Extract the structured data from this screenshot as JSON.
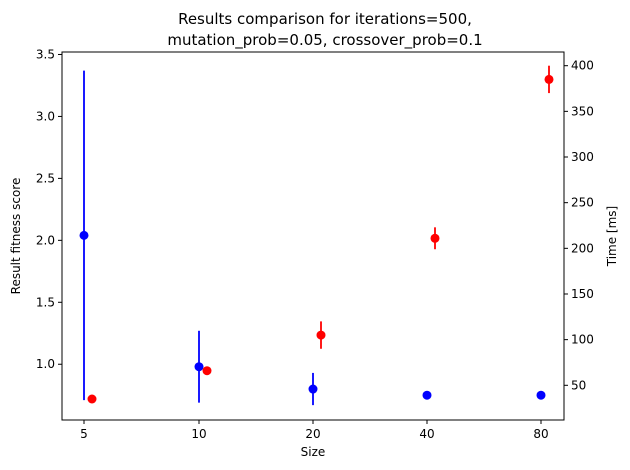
{
  "chart_data": {
    "type": "scatter",
    "title_lines": [
      "Results comparison for iterations=500,",
      "mutation_prob=0.05, crossover_prob=0.1"
    ],
    "xlabel": "Size",
    "ylabel_left": "Result fitness score",
    "ylabel_right": "Time [ms]",
    "categories": [
      "5",
      "10",
      "20",
      "40",
      "80"
    ],
    "y_left_lim": [
      0.55,
      3.52
    ],
    "y_left_ticks": [
      "1.0",
      "1.5",
      "2.0",
      "2.5",
      "3.0",
      "3.5"
    ],
    "y_right_lim": [
      12,
      415
    ],
    "y_right_ticks": [
      "50",
      "100",
      "150",
      "200",
      "250",
      "300",
      "350",
      "400"
    ],
    "grid": false,
    "series": [
      {
        "axis": "left",
        "color": "#0000ff",
        "values": [
          2.04,
          0.98,
          0.8,
          0.75,
          0.75
        ],
        "errors": [
          1.33,
          0.29,
          0.13,
          0.0,
          0.0
        ]
      },
      {
        "axis": "right",
        "color": "#ff0000",
        "values": [
          35,
          66,
          105,
          211,
          385
        ],
        "errors": [
          0,
          0,
          15,
          12,
          15
        ]
      }
    ]
  }
}
